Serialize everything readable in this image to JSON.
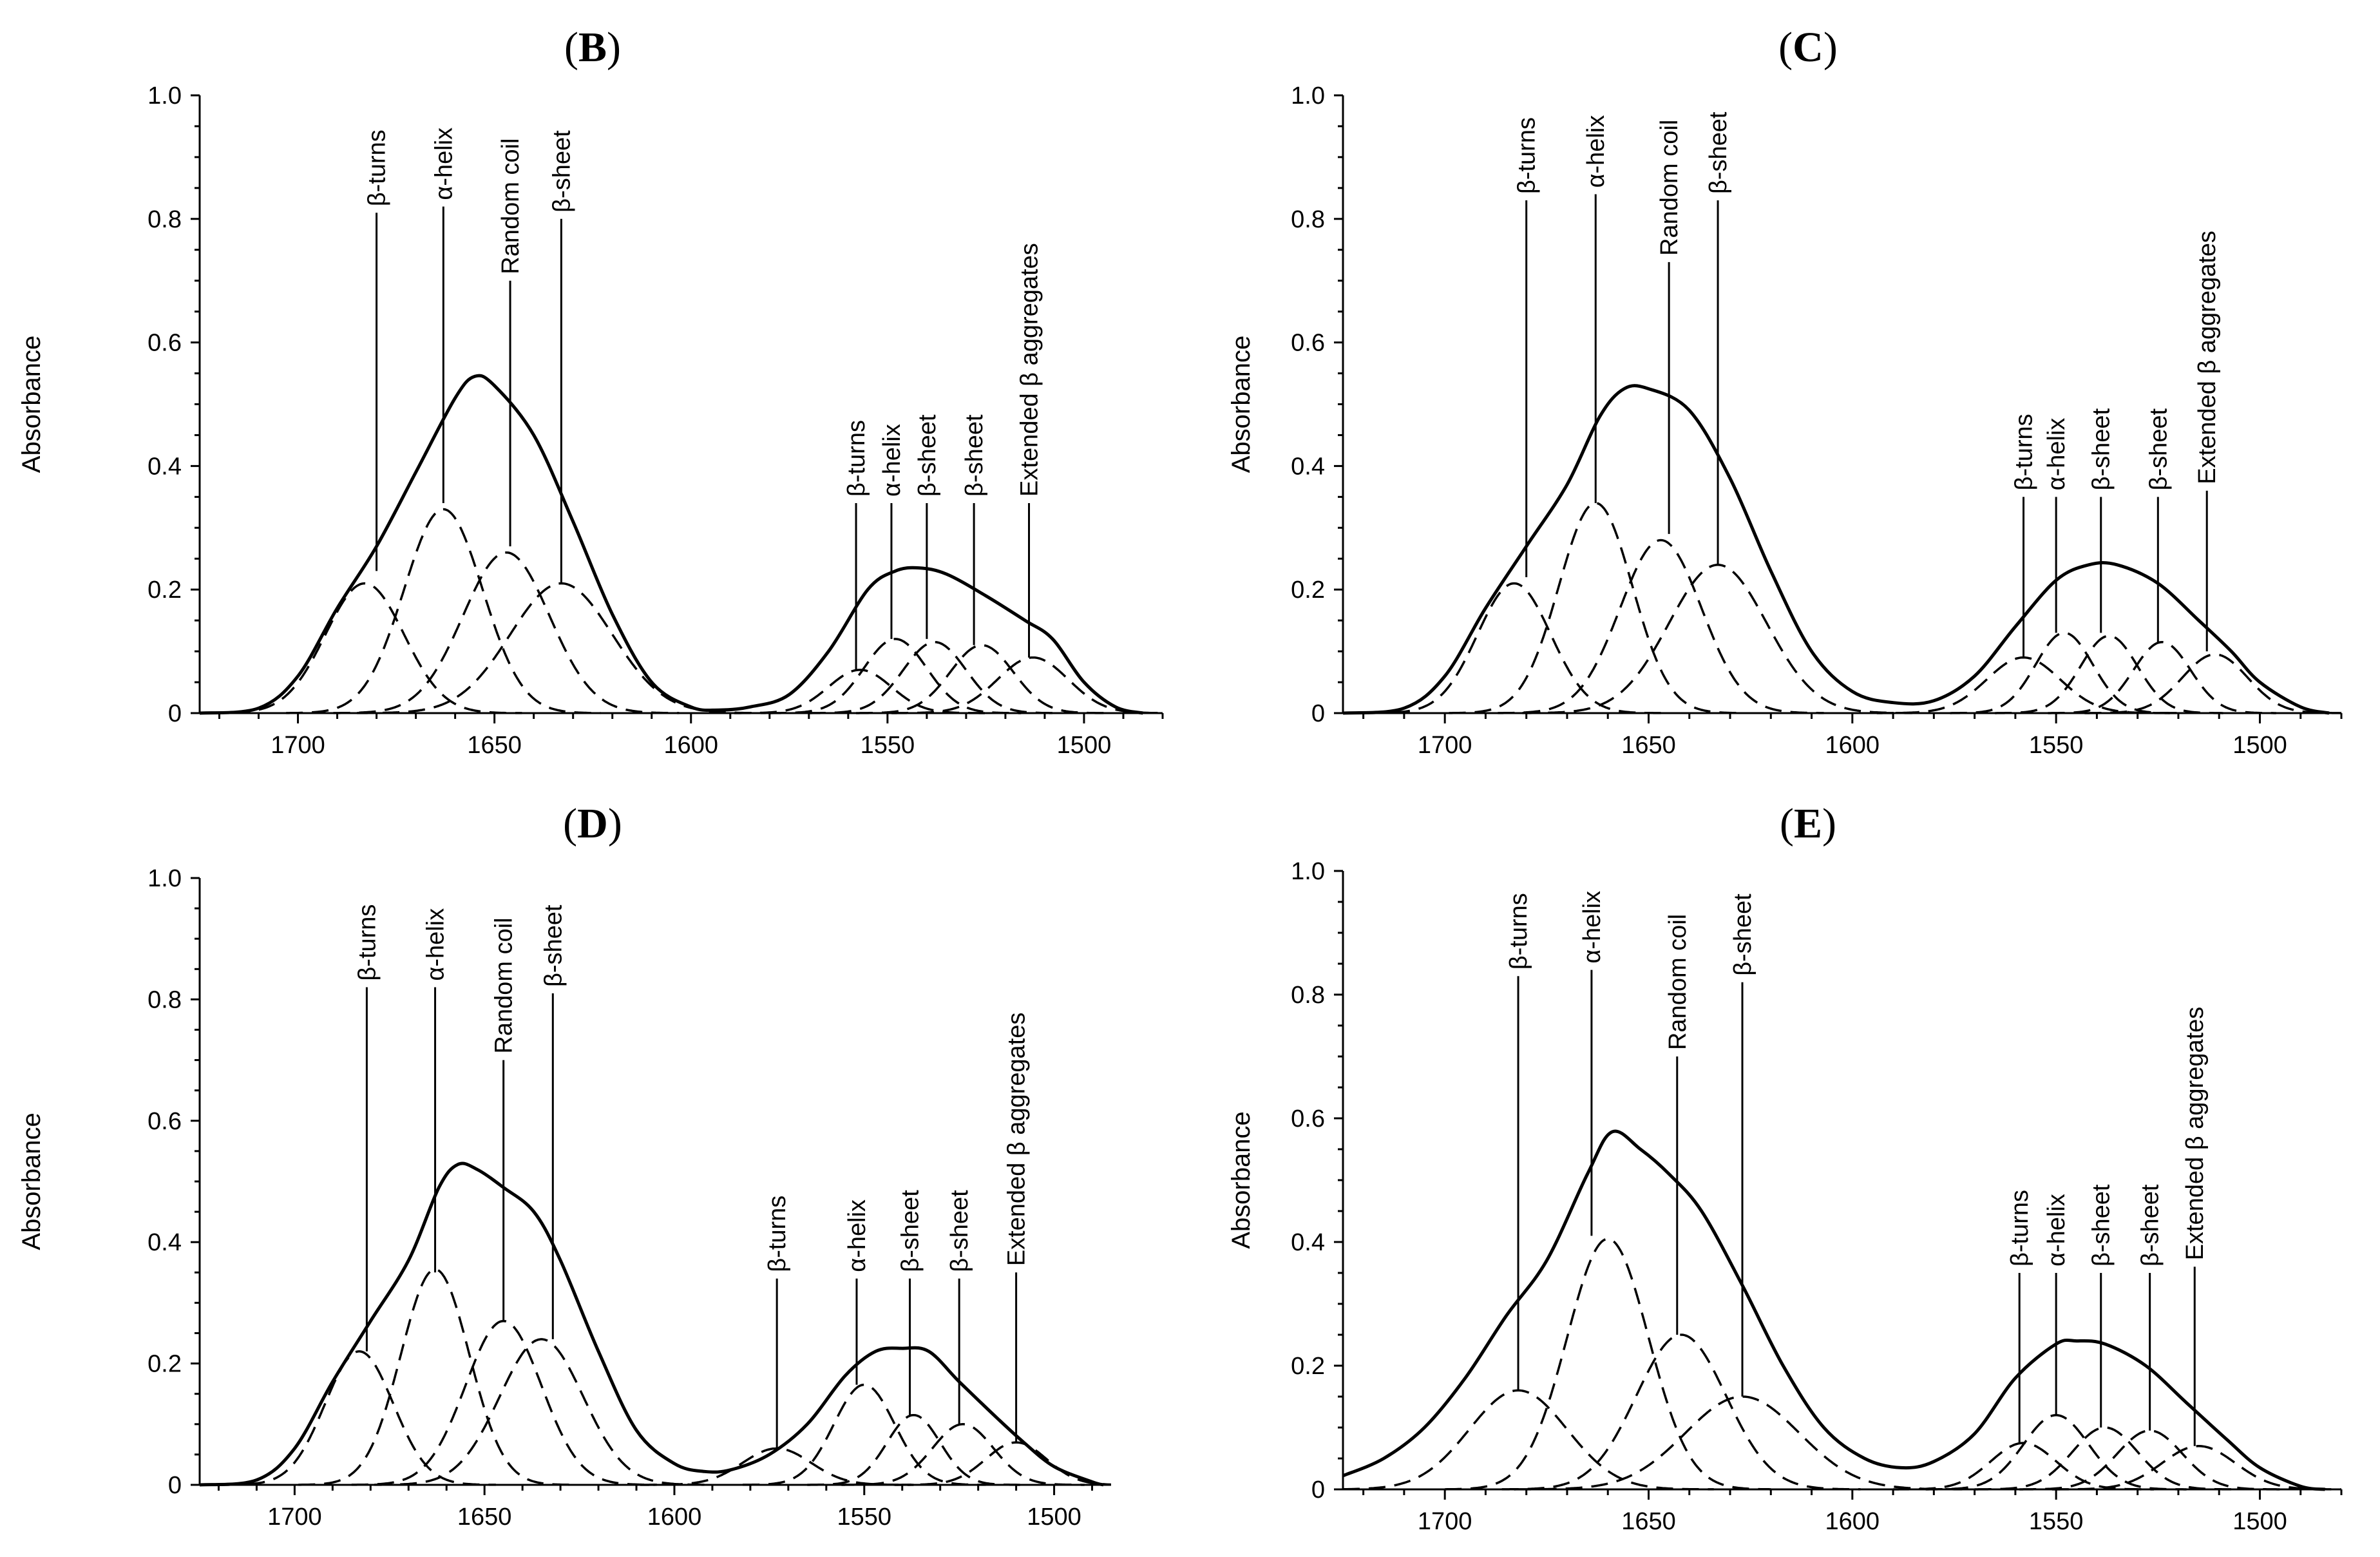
{
  "figure": {
    "panels": [
      "B",
      "C",
      "D",
      "E"
    ]
  },
  "chart_data": [
    {
      "type": "line",
      "panel": "B",
      "title": "(B)",
      "ylabel": "Absorbance",
      "xlabel": "",
      "xlim": [
        1725,
        1480
      ],
      "ylim": [
        0,
        1.0
      ],
      "xticks": [
        "1700",
        "1650",
        "1600",
        "1550",
        "1500"
      ],
      "yticks": [
        "0",
        "0.2",
        "0.4",
        "0.6",
        "0.8",
        "1.0"
      ],
      "components": [
        {
          "center": 1683,
          "height": 0.21,
          "width": 10
        },
        {
          "center": 1663,
          "height": 0.33,
          "width": 10
        },
        {
          "center": 1647,
          "height": 0.26,
          "width": 11
        },
        {
          "center": 1633,
          "height": 0.21,
          "width": 13
        },
        {
          "center": 1557,
          "height": 0.07,
          "width": 8
        },
        {
          "center": 1548,
          "height": 0.12,
          "width": 8
        },
        {
          "center": 1538,
          "height": 0.115,
          "width": 8
        },
        {
          "center": 1526,
          "height": 0.11,
          "width": 8
        },
        {
          "center": 1513,
          "height": 0.09,
          "width": 9
        }
      ],
      "fit_points": [
        [
          1725,
          0.0
        ],
        [
          1710,
          0.008
        ],
        [
          1700,
          0.06
        ],
        [
          1690,
          0.17
        ],
        [
          1680,
          0.27
        ],
        [
          1670,
          0.39
        ],
        [
          1660,
          0.51
        ],
        [
          1655,
          0.545
        ],
        [
          1650,
          0.53
        ],
        [
          1640,
          0.45
        ],
        [
          1630,
          0.31
        ],
        [
          1620,
          0.16
        ],
        [
          1610,
          0.05
        ],
        [
          1600,
          0.01
        ],
        [
          1593,
          0.005
        ],
        [
          1585,
          0.01
        ],
        [
          1575,
          0.03
        ],
        [
          1565,
          0.1
        ],
        [
          1555,
          0.2
        ],
        [
          1548,
          0.23
        ],
        [
          1542,
          0.235
        ],
        [
          1535,
          0.225
        ],
        [
          1525,
          0.19
        ],
        [
          1515,
          0.15
        ],
        [
          1508,
          0.12
        ],
        [
          1500,
          0.05
        ],
        [
          1492,
          0.01
        ],
        [
          1485,
          0.0
        ]
      ],
      "annotations": [
        {
          "label": "β-turns",
          "x": 1680,
          "y_bottom": 0.23,
          "y_top": 0.81
        },
        {
          "label": "α-helix",
          "x": 1663,
          "y_bottom": 0.34,
          "y_top": 0.82
        },
        {
          "label": "Random coil",
          "x": 1646,
          "y_bottom": 0.27,
          "y_top": 0.7
        },
        {
          "label": "β-sheet",
          "x": 1633,
          "y_bottom": 0.21,
          "y_top": 0.8
        },
        {
          "label": "β-turns",
          "x": 1558,
          "y_bottom": 0.07,
          "y_top": 0.34
        },
        {
          "label": "α-helix",
          "x": 1549,
          "y_bottom": 0.12,
          "y_top": 0.34
        },
        {
          "label": "β-sheet",
          "x": 1540,
          "y_bottom": 0.12,
          "y_top": 0.34
        },
        {
          "label": "β-sheet",
          "x": 1528,
          "y_bottom": 0.11,
          "y_top": 0.34
        },
        {
          "label": "Extended β aggregates",
          "x": 1514,
          "y_bottom": 0.09,
          "y_top": 0.34
        }
      ]
    },
    {
      "type": "line",
      "panel": "C",
      "title": "(C)",
      "ylabel": "Absorbance",
      "xlabel": "",
      "xlim": [
        1725,
        1480
      ],
      "ylim": [
        0,
        1.0
      ],
      "xticks": [
        "1700",
        "1650",
        "1600",
        "1550",
        "1500"
      ],
      "yticks": [
        "0",
        "0.2",
        "0.4",
        "0.6",
        "0.8",
        "1.0"
      ],
      "components": [
        {
          "center": 1683,
          "height": 0.21,
          "width": 9
        },
        {
          "center": 1663,
          "height": 0.34,
          "width": 9
        },
        {
          "center": 1647,
          "height": 0.28,
          "width": 10
        },
        {
          "center": 1633,
          "height": 0.24,
          "width": 12
        },
        {
          "center": 1558,
          "height": 0.09,
          "width": 9
        },
        {
          "center": 1548,
          "height": 0.13,
          "width": 7
        },
        {
          "center": 1537,
          "height": 0.125,
          "width": 7
        },
        {
          "center": 1524,
          "height": 0.115,
          "width": 7
        },
        {
          "center": 1511,
          "height": 0.095,
          "width": 8
        }
      ],
      "fit_points": [
        [
          1725,
          0.0
        ],
        [
          1710,
          0.008
        ],
        [
          1700,
          0.06
        ],
        [
          1690,
          0.17
        ],
        [
          1680,
          0.27
        ],
        [
          1670,
          0.37
        ],
        [
          1662,
          0.48
        ],
        [
          1656,
          0.525
        ],
        [
          1650,
          0.525
        ],
        [
          1640,
          0.49
        ],
        [
          1630,
          0.38
        ],
        [
          1620,
          0.23
        ],
        [
          1610,
          0.1
        ],
        [
          1600,
          0.035
        ],
        [
          1590,
          0.017
        ],
        [
          1580,
          0.02
        ],
        [
          1570,
          0.06
        ],
        [
          1560,
          0.14
        ],
        [
          1550,
          0.215
        ],
        [
          1542,
          0.24
        ],
        [
          1535,
          0.24
        ],
        [
          1525,
          0.21
        ],
        [
          1515,
          0.15
        ],
        [
          1507,
          0.1
        ],
        [
          1500,
          0.05
        ],
        [
          1490,
          0.01
        ],
        [
          1483,
          0.0
        ]
      ],
      "annotations": [
        {
          "label": "β-turns",
          "x": 1680,
          "y_bottom": 0.22,
          "y_top": 0.83
        },
        {
          "label": "α-helix",
          "x": 1663,
          "y_bottom": 0.34,
          "y_top": 0.84
        },
        {
          "label": "Random coil",
          "x": 1645,
          "y_bottom": 0.29,
          "y_top": 0.73
        },
        {
          "label": "β-sheet",
          "x": 1633,
          "y_bottom": 0.24,
          "y_top": 0.83
        },
        {
          "label": "β-turns",
          "x": 1558,
          "y_bottom": 0.09,
          "y_top": 0.35
        },
        {
          "label": "α-helix",
          "x": 1550,
          "y_bottom": 0.13,
          "y_top": 0.35
        },
        {
          "label": "β-sheet",
          "x": 1539,
          "y_bottom": 0.13,
          "y_top": 0.35
        },
        {
          "label": "β-sheet",
          "x": 1525,
          "y_bottom": 0.115,
          "y_top": 0.35
        },
        {
          "label": "Extended β aggregates",
          "x": 1513,
          "y_bottom": 0.1,
          "y_top": 0.36
        }
      ]
    },
    {
      "type": "line",
      "panel": "D",
      "title": "(D)",
      "ylabel": "Absorbance",
      "xlabel": "",
      "xlim": [
        1725,
        1485
      ],
      "ylim": [
        0,
        1.0
      ],
      "xticks": [
        "1700",
        "1650",
        "1600",
        "1550",
        "1500"
      ],
      "yticks": [
        "0",
        "0.2",
        "0.4",
        "0.6",
        "0.8",
        "1.0"
      ],
      "components": [
        {
          "center": 1683,
          "height": 0.22,
          "width": 9
        },
        {
          "center": 1663,
          "height": 0.355,
          "width": 9
        },
        {
          "center": 1645,
          "height": 0.27,
          "width": 10
        },
        {
          "center": 1635,
          "height": 0.24,
          "width": 11
        },
        {
          "center": 1573,
          "height": 0.06,
          "width": 9
        },
        {
          "center": 1550,
          "height": 0.165,
          "width": 8
        },
        {
          "center": 1537,
          "height": 0.115,
          "width": 7
        },
        {
          "center": 1524,
          "height": 0.1,
          "width": 8
        },
        {
          "center": 1510,
          "height": 0.07,
          "width": 8
        }
      ],
      "fit_points": [
        [
          1725,
          0.0
        ],
        [
          1710,
          0.008
        ],
        [
          1700,
          0.06
        ],
        [
          1690,
          0.17
        ],
        [
          1680,
          0.27
        ],
        [
          1670,
          0.37
        ],
        [
          1662,
          0.49
        ],
        [
          1657,
          0.528
        ],
        [
          1652,
          0.52
        ],
        [
          1645,
          0.49
        ],
        [
          1637,
          0.45
        ],
        [
          1630,
          0.37
        ],
        [
          1620,
          0.22
        ],
        [
          1610,
          0.09
        ],
        [
          1600,
          0.035
        ],
        [
          1592,
          0.022
        ],
        [
          1585,
          0.025
        ],
        [
          1575,
          0.05
        ],
        [
          1565,
          0.1
        ],
        [
          1555,
          0.18
        ],
        [
          1547,
          0.22
        ],
        [
          1540,
          0.225
        ],
        [
          1533,
          0.22
        ],
        [
          1525,
          0.17
        ],
        [
          1515,
          0.11
        ],
        [
          1508,
          0.07
        ],
        [
          1500,
          0.03
        ],
        [
          1490,
          0.005
        ],
        [
          1487,
          0.0
        ]
      ],
      "annotations": [
        {
          "label": "β-turns",
          "x": 1681,
          "y_bottom": 0.22,
          "y_top": 0.82
        },
        {
          "label": "α-helix",
          "x": 1663,
          "y_bottom": 0.35,
          "y_top": 0.82
        },
        {
          "label": "Random coil",
          "x": 1645,
          "y_bottom": 0.27,
          "y_top": 0.7
        },
        {
          "label": "β-sheet",
          "x": 1632,
          "y_bottom": 0.24,
          "y_top": 0.81
        },
        {
          "label": "β-turns",
          "x": 1573,
          "y_bottom": 0.06,
          "y_top": 0.34
        },
        {
          "label": "α-helix",
          "x": 1552,
          "y_bottom": 0.165,
          "y_top": 0.34
        },
        {
          "label": "β-sheet",
          "x": 1538,
          "y_bottom": 0.115,
          "y_top": 0.34
        },
        {
          "label": "β-sheet",
          "x": 1525,
          "y_bottom": 0.1,
          "y_top": 0.34
        },
        {
          "label": "Extended β aggregates",
          "x": 1510,
          "y_bottom": 0.07,
          "y_top": 0.35
        }
      ]
    },
    {
      "type": "line",
      "panel": "E",
      "title": "(E)",
      "ylabel": "Absorbance",
      "xlabel": "",
      "xlim": [
        1725,
        1480
      ],
      "ylim": [
        0,
        1.0
      ],
      "xticks": [
        "1700",
        "1650",
        "1600",
        "1550",
        "1500"
      ],
      "yticks": [
        "0",
        "0.2",
        "0.4",
        "0.6",
        "0.8",
        "1.0"
      ],
      "components": [
        {
          "center": 1682,
          "height": 0.16,
          "width": 12
        },
        {
          "center": 1660,
          "height": 0.405,
          "width": 10
        },
        {
          "center": 1642,
          "height": 0.25,
          "width": 11
        },
        {
          "center": 1627,
          "height": 0.15,
          "width": 14
        },
        {
          "center": 1558,
          "height": 0.075,
          "width": 8
        },
        {
          "center": 1550,
          "height": 0.12,
          "width": 8
        },
        {
          "center": 1538,
          "height": 0.1,
          "width": 8
        },
        {
          "center": 1527,
          "height": 0.095,
          "width": 8
        },
        {
          "center": 1515,
          "height": 0.07,
          "width": 9
        }
      ],
      "fit_points": [
        [
          1725,
          0.022
        ],
        [
          1715,
          0.05
        ],
        [
          1705,
          0.1
        ],
        [
          1695,
          0.18
        ],
        [
          1685,
          0.28
        ],
        [
          1675,
          0.37
        ],
        [
          1665,
          0.51
        ],
        [
          1659,
          0.578
        ],
        [
          1652,
          0.55
        ],
        [
          1645,
          0.51
        ],
        [
          1637,
          0.45
        ],
        [
          1627,
          0.33
        ],
        [
          1617,
          0.2
        ],
        [
          1607,
          0.1
        ],
        [
          1597,
          0.05
        ],
        [
          1588,
          0.035
        ],
        [
          1580,
          0.045
        ],
        [
          1570,
          0.09
        ],
        [
          1560,
          0.18
        ],
        [
          1550,
          0.235
        ],
        [
          1545,
          0.24
        ],
        [
          1538,
          0.235
        ],
        [
          1528,
          0.2
        ],
        [
          1518,
          0.14
        ],
        [
          1508,
          0.08
        ],
        [
          1500,
          0.035
        ],
        [
          1490,
          0.005
        ],
        [
          1484,
          0.0
        ]
      ],
      "annotations": [
        {
          "label": "β-turns",
          "x": 1682,
          "y_bottom": 0.16,
          "y_top": 0.83
        },
        {
          "label": "α-helix",
          "x": 1664,
          "y_bottom": 0.41,
          "y_top": 0.84
        },
        {
          "label": "Random coil",
          "x": 1643,
          "y_bottom": 0.25,
          "y_top": 0.7
        },
        {
          "label": "β-sheet",
          "x": 1627,
          "y_bottom": 0.15,
          "y_top": 0.82
        },
        {
          "label": "β-turns",
          "x": 1559,
          "y_bottom": 0.075,
          "y_top": 0.35
        },
        {
          "label": "α-helix",
          "x": 1550,
          "y_bottom": 0.12,
          "y_top": 0.35
        },
        {
          "label": "β-sheet",
          "x": 1539,
          "y_bottom": 0.1,
          "y_top": 0.35
        },
        {
          "label": "β-sheet",
          "x": 1527,
          "y_bottom": 0.095,
          "y_top": 0.35
        },
        {
          "label": "Extended β aggregates",
          "x": 1516,
          "y_bottom": 0.07,
          "y_top": 0.36
        }
      ]
    }
  ]
}
